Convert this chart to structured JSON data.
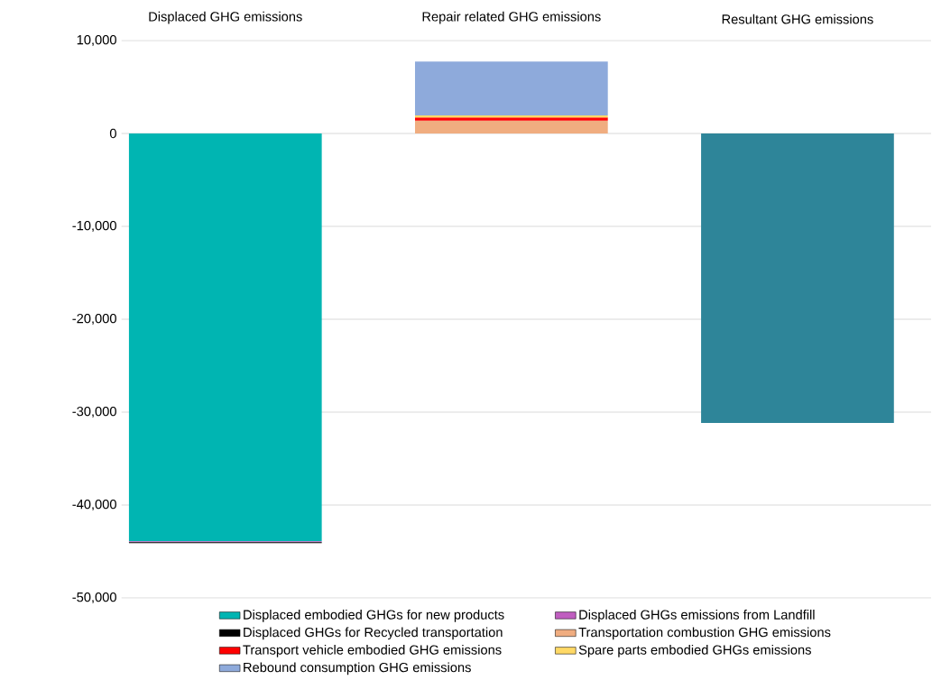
{
  "chart_data": {
    "type": "bar",
    "stacked": true,
    "categories": [
      "Displaced GHG emissions",
      "Repair related GHG emissions",
      "Resultant GHG emissions"
    ],
    "series": [
      {
        "name": "Displaced embodied GHGs for new products",
        "color": "#00b5b2",
        "values": [
          -43900,
          null,
          null
        ]
      },
      {
        "name": "Displaced GHGs emissions from Landfill",
        "color": "#c05ec0",
        "values": [
          -100,
          null,
          null
        ]
      },
      {
        "name": "Displaced GHGs for Recycled transportation",
        "color": "#000000",
        "values": [
          -100,
          null,
          null
        ]
      },
      {
        "name": "Transportation combustion GHG emissions",
        "color": "#f0ad80",
        "values": [
          null,
          1390,
          null
        ]
      },
      {
        "name": "Transport vehicle embodied GHG emissions",
        "color": "#ff0000",
        "values": [
          null,
          330,
          null
        ]
      },
      {
        "name": "Spare parts embodied GHGs emissions",
        "color": "#ffd966",
        "values": [
          null,
          220,
          null
        ]
      },
      {
        "name": "Rebound consumption GHG emissions",
        "color": "#8eaadb",
        "values": [
          null,
          5800,
          null
        ]
      },
      {
        "color": "#2e8599",
        "values": [
          null,
          null,
          -31170
        ]
      }
    ],
    "ylim": [
      -50000,
      10000
    ],
    "yticks": [
      {
        "value": -50000,
        "label": "-50,000"
      },
      {
        "value": -40000,
        "label": "-40,000"
      },
      {
        "value": -30000,
        "label": "-30,000"
      },
      {
        "value": -20000,
        "label": "-20,000"
      },
      {
        "value": -10000,
        "label": "-10,000"
      },
      0,
      {
        "value": 10000,
        "label": "10,000"
      }
    ],
    "grid": "y",
    "legend": "bottom"
  }
}
